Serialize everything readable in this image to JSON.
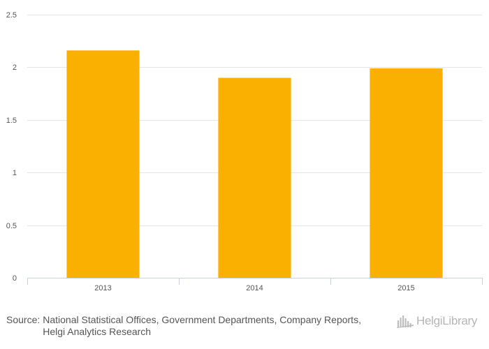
{
  "chart_data": {
    "type": "bar",
    "title": "",
    "xlabel": "",
    "ylabel": "",
    "categories": [
      "2013",
      "2014",
      "2015"
    ],
    "values": [
      2.16,
      1.9,
      1.99
    ],
    "ylim": [
      0,
      2.5
    ],
    "yticks": [
      0,
      0.5,
      1,
      1.5,
      2,
      2.5
    ],
    "ytick_labels": [
      "0",
      "0.5",
      "1",
      "1.5",
      "2",
      "2.5"
    ],
    "grid": true,
    "legend": "none",
    "bar_color": "#f9b000"
  },
  "footer": {
    "source_label": "Source:",
    "source_text": "National Statistical Offices, Government Departments, Company Reports, Helgi Analytics Research"
  },
  "logo": {
    "text": "HelgiLibrary",
    "icon": "helgi-library-logo-icon",
    "color": "#b5b5b5"
  }
}
